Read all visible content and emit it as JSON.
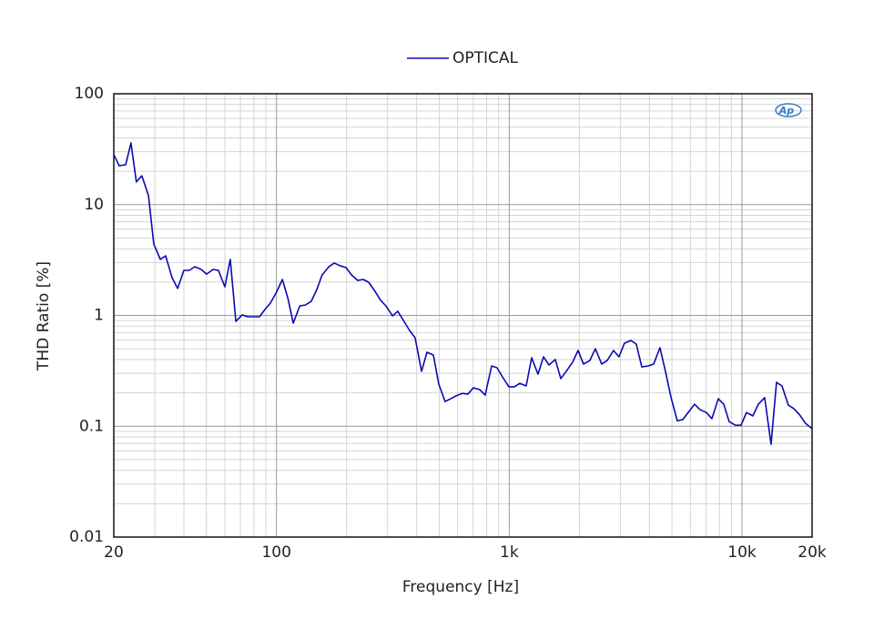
{
  "chart_data": {
    "type": "line",
    "legend": "top",
    "logo": "Ap",
    "xlabel": "Frequency [Hz]",
    "ylabel": "THD Ratio [%]",
    "xscale": "log",
    "yscale": "log",
    "grid": true,
    "xlim": [
      20,
      20000
    ],
    "ylim": [
      0.01,
      100
    ],
    "xticks": [
      20,
      100,
      {
        "value": 1000,
        "label": "1k"
      },
      {
        "value": 10000,
        "label": "10k"
      },
      {
        "value": 20000,
        "label": "20k"
      }
    ],
    "yticks": [
      0.01,
      0.1,
      1,
      10,
      100
    ],
    "xminor": [
      30,
      40,
      50,
      60,
      70,
      80,
      90,
      200,
      300,
      400,
      500,
      600,
      700,
      800,
      900,
      2000,
      3000,
      4000,
      5000,
      6000,
      7000,
      8000,
      9000
    ],
    "yminor": [
      0.02,
      0.03,
      0.04,
      0.05,
      0.06,
      0.07,
      0.08,
      0.09,
      0.2,
      0.3,
      0.4,
      0.5,
      0.6,
      0.7,
      0.8,
      0.9,
      2,
      3,
      4,
      5,
      6,
      7,
      8,
      9,
      20,
      30,
      40,
      50,
      60,
      70,
      80,
      90
    ],
    "x": [
      20,
      21.1,
      22.5,
      23.7,
      25.0,
      26.4,
      28.2,
      29.7,
      31.7,
      33.4,
      35.6,
      37.6,
      40,
      42.2,
      44.6,
      47.5,
      50.1,
      53.4,
      56.3,
      60,
      63.3,
      66.9,
      71.2,
      75.1,
      84.5,
      89.2,
      94.1,
      100,
      106,
      112,
      118,
      126,
      133,
      141,
      149,
      157,
      168,
      177,
      188,
      199,
      210,
      223,
      236,
      249,
      265,
      280,
      295,
      315,
      332,
      351,
      373,
      394,
      420,
      443,
      472,
      498,
      530,
      560,
      591,
      629,
      664,
      701,
      747,
      788,
      840,
      886,
      935,
      996,
      1052,
      1110,
      1182,
      1248,
      1329,
      1403,
      1481,
      1577,
      1665,
      1757,
      1871,
      1975,
      2084,
      2220,
      2343,
      2496,
      2634,
      2806,
      2962,
      3126,
      3330,
      3514,
      3710,
      3950,
      4170,
      4442,
      4688,
      4948,
      5270,
      5564,
      5872,
      6254,
      6602,
      7032,
      7422,
      7906,
      8344,
      8808,
      9380,
      9902,
      10448,
      11130,
      11748,
      12512,
      13326,
      14066,
      14848,
      15814,
      16692,
      17620,
      18760,
      20000
    ],
    "series": [
      {
        "name": "OPTICAL",
        "color": "#0a0ab0",
        "values": [
          28.2,
          22.4,
          22.9,
          36.0,
          16.0,
          18.2,
          12.0,
          4.41,
          3.2,
          3.45,
          2.19,
          1.75,
          2.55,
          2.55,
          2.75,
          2.6,
          2.36,
          2.6,
          2.55,
          1.81,
          3.2,
          0.884,
          1.01,
          0.972,
          0.972,
          1.13,
          1.29,
          1.62,
          2.11,
          1.42,
          0.852,
          1.22,
          1.24,
          1.34,
          1.71,
          2.32,
          2.75,
          2.97,
          2.8,
          2.7,
          2.32,
          2.07,
          2.11,
          1.99,
          1.65,
          1.37,
          1.22,
          0.991,
          1.09,
          0.901,
          0.732,
          0.629,
          0.313,
          0.465,
          0.439,
          0.24,
          0.167,
          0.177,
          0.188,
          0.198,
          0.195,
          0.222,
          0.214,
          0.191,
          0.35,
          0.337,
          0.279,
          0.227,
          0.227,
          0.244,
          0.231,
          0.415,
          0.295,
          0.423,
          0.357,
          0.4,
          0.269,
          0.313,
          0.378,
          0.483,
          0.364,
          0.392,
          0.501,
          0.364,
          0.392,
          0.483,
          0.423,
          0.562,
          0.594,
          0.551,
          0.343,
          0.35,
          0.364,
          0.511,
          0.313,
          0.184,
          0.112,
          0.115,
          0.133,
          0.158,
          0.141,
          0.133,
          0.117,
          0.177,
          0.158,
          0.11,
          0.102,
          0.102,
          0.133,
          0.124,
          0.158,
          0.181,
          0.0688,
          0.249,
          0.231,
          0.155,
          0.144,
          0.128,
          0.106,
          0.0949
        ]
      }
    ]
  }
}
